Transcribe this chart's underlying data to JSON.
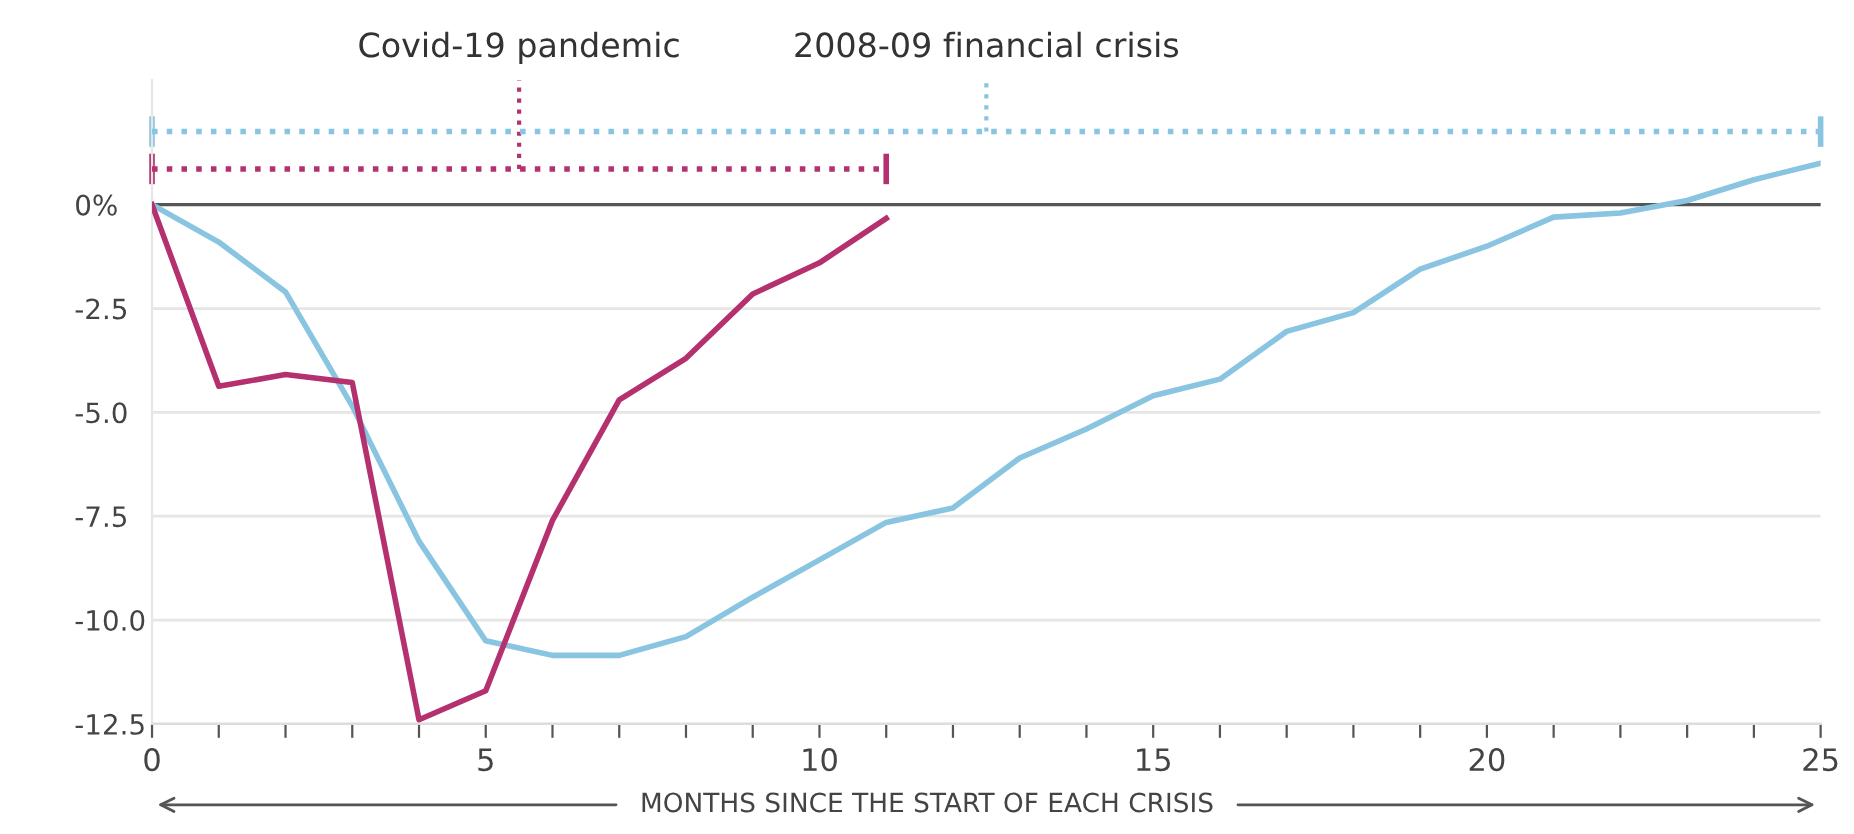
{
  "chart_data": {
    "type": "line",
    "xlabel": "MONTHS SINCE THE START OF EACH CRISIS",
    "x": [
      0,
      1,
      2,
      3,
      4,
      5,
      6,
      7,
      8,
      9,
      10,
      11,
      12,
      13,
      14,
      15,
      16,
      17,
      18,
      19,
      20,
      21,
      22,
      23,
      24,
      25
    ],
    "series": [
      {
        "color": "#89c4e1",
        "values": [
          0,
          -0.9,
          -2.1,
          -4.85,
          -8.1,
          -10.5,
          -10.85,
          -10.85,
          -10.4,
          -9.45,
          -8.55,
          -7.65,
          -7.3,
          -6.1,
          -5.4,
          -4.6,
          -4.2,
          -3.05,
          -2.6,
          -1.55,
          -1.0,
          -0.3,
          -0.2,
          0.1,
          0.6,
          1.0
        ]
      },
      {
        "color": "#b5306e",
        "values": [
          0,
          -4.37,
          -4.09,
          -4.28,
          -12.4,
          -11.7,
          -7.6,
          -4.7,
          -3.7,
          -2.15,
          -1.4,
          -0.33,
          null,
          null,
          null,
          null,
          null,
          null,
          null,
          null,
          null,
          null,
          null,
          null,
          null,
          null
        ]
      },
      {
        "name": "Covid-19 pandemic",
        "color": "#b5306e",
        "x": [
          0,
          11
        ],
        "values": [
          0.86,
          0.86
        ],
        "line_style": "dotted"
      },
      {
        "name": "2008-09 financial crisis",
        "color": "#89c4e1",
        "x": [
          0,
          25
        ],
        "values": [
          1.76,
          1.76
        ],
        "line_style": "dotted"
      }
    ],
    "xlim": [
      0,
      25
    ],
    "xticks": [
      0,
      {
        "value": 1,
        "label": null
      },
      {
        "value": 2,
        "label": null
      },
      {
        "value": 3,
        "label": null
      },
      {
        "value": 4,
        "label": null
      },
      5,
      {
        "value": 6,
        "label": null
      },
      {
        "value": 7,
        "label": null
      },
      {
        "value": 8,
        "label": null
      },
      {
        "value": 9,
        "label": null
      },
      10,
      {
        "value": 11,
        "label": null
      },
      {
        "value": 12,
        "label": null
      },
      {
        "value": 13,
        "label": null
      },
      {
        "value": 14,
        "label": null
      },
      15,
      {
        "value": 16,
        "label": null
      },
      {
        "value": 17,
        "label": null
      },
      {
        "value": 18,
        "label": null
      },
      {
        "value": 19,
        "label": null
      },
      20,
      {
        "value": 21,
        "label": null
      },
      {
        "value": 22,
        "label": null
      },
      {
        "value": 23,
        "label": null
      },
      {
        "value": 24,
        "label": null
      },
      25
    ],
    "ylim": [
      -12.5,
      3.0
    ],
    "yticks": [
      {
        "value": 0,
        "label": "0%"
      },
      {
        "value": -2.5,
        "label": "-2.5"
      },
      {
        "value": -5,
        "label": "-5.0"
      },
      {
        "value": -7.5,
        "label": "-7.5"
      },
      {
        "value": -10,
        "label": "-10.0"
      },
      {
        "value": -12.5,
        "label": "-12.5"
      }
    ],
    "grid": "y",
    "ref_lines": [
      {
        "axis": "y",
        "value": 0,
        "label": null,
        "color": "#555555"
      }
    ],
    "legend": false,
    "marker": "none",
    "line_style": "solid"
  }
}
